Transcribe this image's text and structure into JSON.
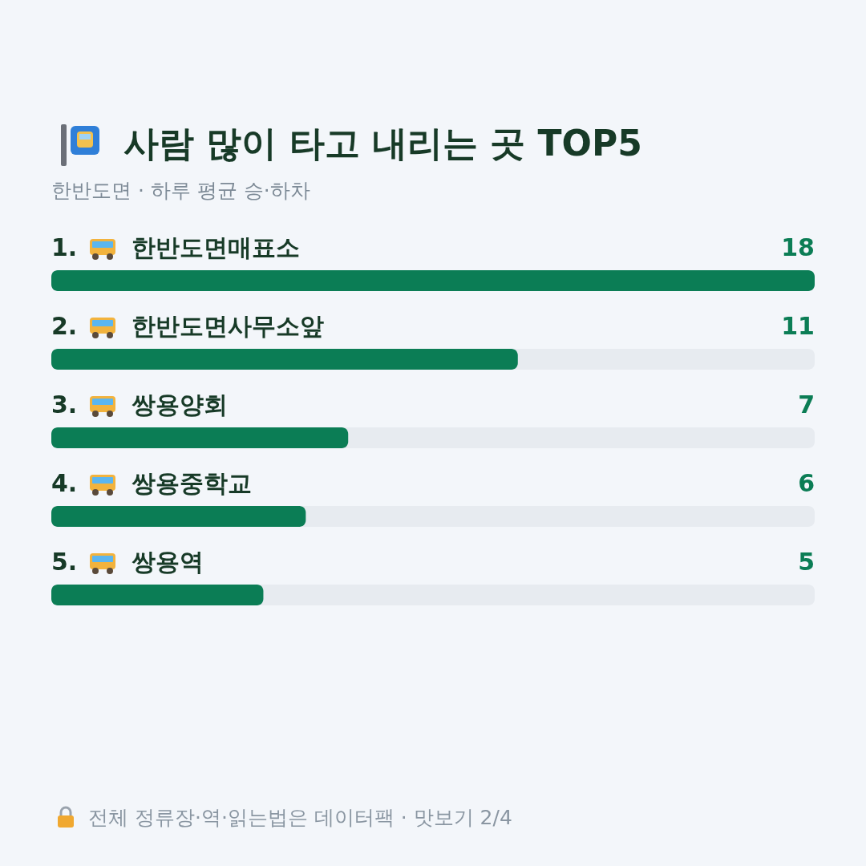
{
  "chart_data": {
    "type": "bar",
    "orientation": "horizontal",
    "title": "사람 많이 타고 내리는 곳 TOP5",
    "subtitle": "한반도면 · 하루 평균 승·하차",
    "categories": [
      "1. 한반도면매표소",
      "2. 한반도면사무소앞",
      "3. 쌍용양회",
      "4. 쌍용중학교",
      "5. 쌍용역"
    ],
    "values": [
      18,
      11,
      7,
      6,
      5
    ],
    "color": "#0b7d55",
    "data_labels": true,
    "xlim": [
      0,
      18
    ],
    "annotations": [
      "전체 정류장·역·읽는법은 데이터팩 · 맛보기 2/4"
    ]
  }
}
